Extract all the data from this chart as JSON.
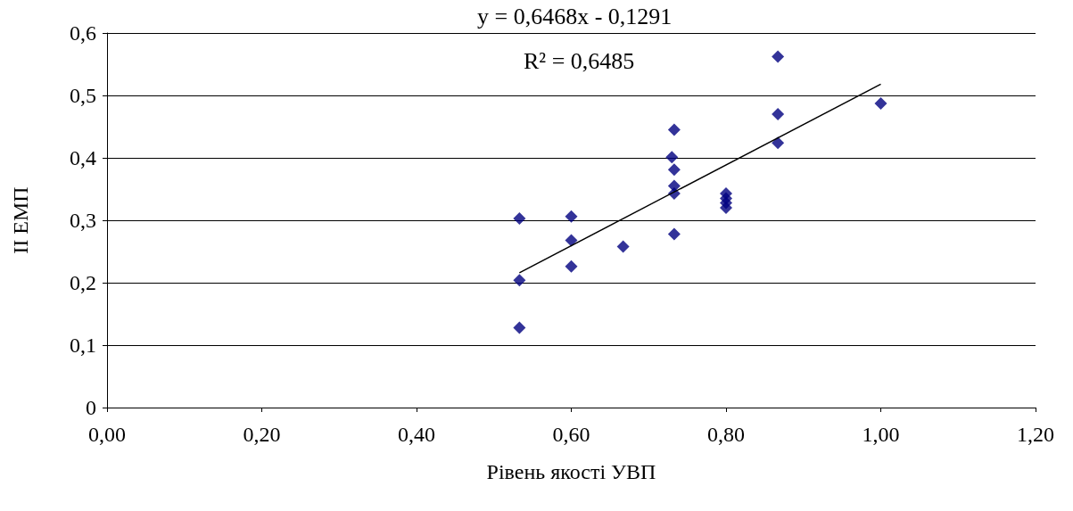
{
  "chart_data": {
    "type": "scatter",
    "xlabel": "Рівень якості УВП",
    "ylabel": "ІІ ЕМП",
    "annotations": [
      "y = 0,6468x - 0,1291",
      "R² = 0,6485"
    ],
    "series": [
      {
        "color": "#000080",
        "marker": "diamond",
        "x": [
          0.533,
          0.533,
          0.533,
          0.6,
          0.6,
          0.6,
          0.667,
          0.73,
          0.733,
          0.733,
          0.733,
          0.733,
          0.733,
          0.8,
          0.8,
          0.8,
          0.8,
          0.867,
          0.867,
          0.867,
          1.0
        ],
        "values": [
          0.303,
          0.204,
          0.128,
          0.306,
          0.268,
          0.226,
          0.258,
          0.401,
          0.445,
          0.381,
          0.355,
          0.343,
          0.278,
          0.343,
          0.335,
          0.328,
          0.32,
          0.562,
          0.47,
          0.424,
          0.487
        ]
      },
      {
        "type": "line",
        "color": "#000000",
        "marker": "none",
        "line_style": "solid",
        "x": [
          0.533,
          1.0
        ],
        "values": [
          0.216,
          0.518
        ]
      }
    ],
    "xlim": [
      0,
      1.2
    ],
    "ylim": [
      0,
      0.6
    ],
    "xticks": [
      {
        "value": 0,
        "label": "0,00"
      },
      {
        "value": 0.2,
        "label": "0,20"
      },
      {
        "value": 0.4,
        "label": "0,40"
      },
      {
        "value": 0.6,
        "label": "0,60"
      },
      {
        "value": 0.8,
        "label": "0,80"
      },
      {
        "value": 1.0,
        "label": "1,00"
      },
      {
        "value": 1.2,
        "label": "1,20"
      }
    ],
    "yticks": [
      0,
      {
        "value": 0.1,
        "label": "0,1"
      },
      {
        "value": 0.2,
        "label": "0,2"
      },
      {
        "value": 0.3,
        "label": "0,3"
      },
      {
        "value": 0.4,
        "label": "0,4"
      },
      {
        "value": 0.5,
        "label": "0,5"
      },
      {
        "value": 0.6,
        "label": "0,6"
      }
    ],
    "grid": "y"
  }
}
